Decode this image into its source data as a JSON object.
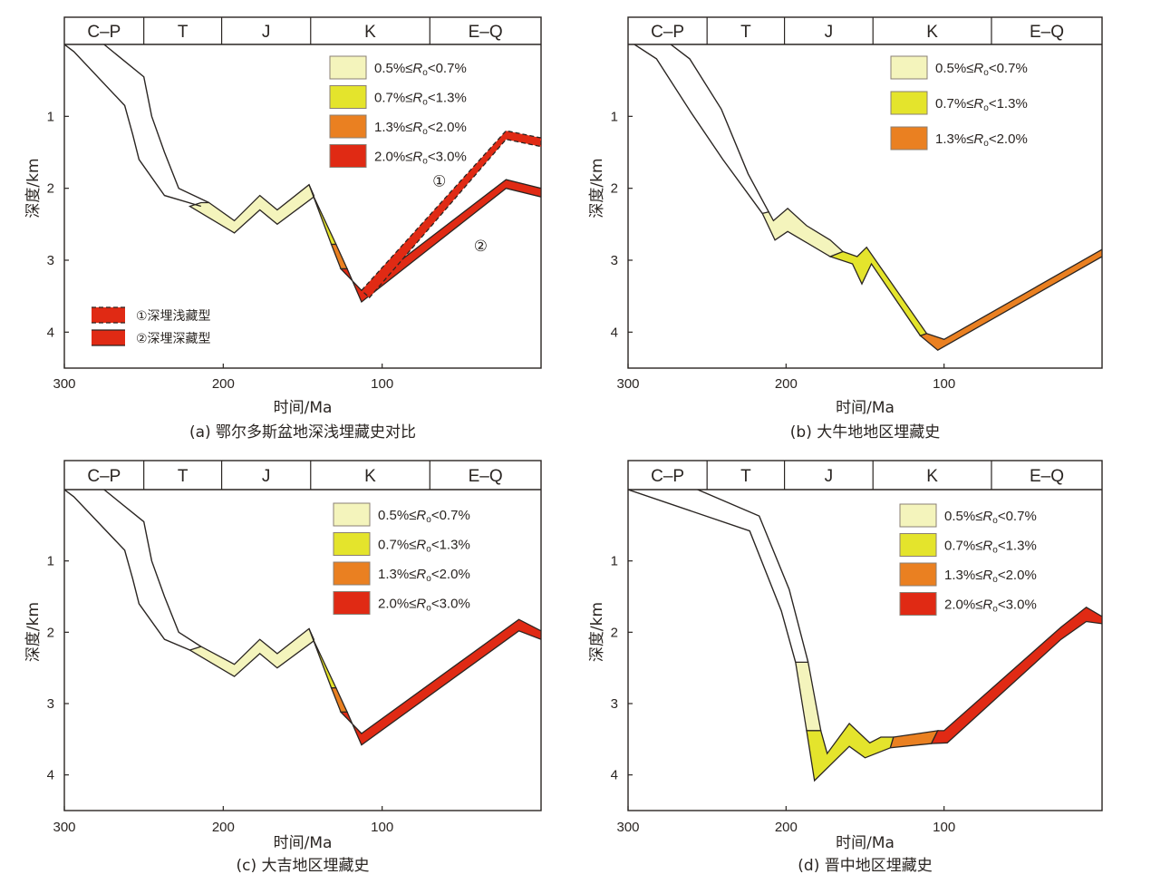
{
  "figure": {
    "colors": {
      "ro_05_07": "#f4f4bc",
      "ro_07_13": "#e4e42c",
      "ro_13_20": "#ea8021",
      "ro_20_30": "#e02a14",
      "outline": "#2a2522"
    },
    "ro_legend": [
      {
        "key": "ro_05_07",
        "pre": "0.5%≤",
        "sym": "R",
        "sub": "o",
        "post": "<0.7%"
      },
      {
        "key": "ro_07_13",
        "pre": "0.7%≤",
        "sym": "R",
        "sub": "o",
        "post": "<1.3%"
      },
      {
        "key": "ro_13_20",
        "pre": "1.3%≤",
        "sym": "R",
        "sub": "o",
        "post": "<2.0%"
      },
      {
        "key": "ro_20_30",
        "pre": "2.0%≤",
        "sym": "R",
        "sub": "o",
        "post": "<3.0%"
      }
    ],
    "periods": [
      {
        "label": "C–P",
        "from": 300,
        "to": 250
      },
      {
        "label": "T",
        "from": 250,
        "to": 201
      },
      {
        "label": "J",
        "from": 201,
        "to": 145
      },
      {
        "label": "K",
        "from": 145,
        "to": 70
      },
      {
        "label": "E–Q",
        "from": 70,
        "to": 0
      }
    ]
  },
  "chart_data": [
    {
      "id": "a",
      "type": "area",
      "title": "(a) 鄂尔多斯盆地深浅埋藏史对比",
      "xlabel": "时间/Ma",
      "ylabel": "深度/km",
      "xlim": [
        300,
        0
      ],
      "ylim": [
        0,
        4.5
      ],
      "xticks": [
        "300",
        "200",
        "100"
      ],
      "xtick_values": [
        300,
        200,
        100
      ],
      "yticks": [
        "1",
        "2",
        "3",
        "4"
      ],
      "ytick_values": [
        1,
        2,
        3,
        4
      ],
      "legend_levels": 4,
      "legend_position": "top-right",
      "burial_legend": [
        {
          "label": "①深埋浅藏型",
          "style": "dashed"
        },
        {
          "label": "②深埋深藏型",
          "style": "solid"
        }
      ],
      "annotations": [
        {
          "text": "①",
          "x": 64,
          "y": 1.9
        },
        {
          "text": "②",
          "x": 38,
          "y": 2.8
        }
      ],
      "top_line": [
        [
          300,
          0
        ],
        [
          294,
          0.1
        ],
        [
          262,
          0.85
        ],
        [
          257,
          1.25
        ],
        [
          253,
          1.6
        ],
        [
          237,
          2.1
        ],
        [
          221,
          2.3
        ],
        [
          193,
          2.62
        ],
        [
          177,
          2.3
        ],
        [
          166,
          2.5
        ],
        [
          144,
          2.1
        ],
        [
          113,
          3.58
        ],
        [
          22,
          2.0
        ],
        [
          0,
          2.08
        ]
      ],
      "bottom_line_raw": null,
      "unfilled_top": [
        [
          300,
          0
        ],
        [
          294,
          0.1
        ],
        [
          262,
          0.85
        ],
        [
          257,
          1.25
        ],
        [
          253,
          1.6
        ],
        [
          237,
          2.1
        ],
        [
          214,
          2.25
        ]
      ],
      "unfilled_upper": [
        [
          275,
          0
        ],
        [
          250,
          0.45
        ],
        [
          245,
          1.0
        ],
        [
          237,
          1.5
        ],
        [
          228,
          2.0
        ],
        [
          209,
          2.2
        ]
      ],
      "segments": [
        {
          "level": "ro_05_07",
          "upper": [
            [
              214,
              2.2
            ],
            [
              209,
              2.2
            ],
            [
              193,
              2.45
            ],
            [
              177,
              2.1
            ],
            [
              166,
              2.3
            ],
            [
              146,
              1.95
            ],
            [
              143,
              2.1
            ]
          ],
          "lower": [
            [
              221,
              2.25
            ],
            [
              193,
              2.62
            ],
            [
              177,
              2.3
            ],
            [
              166,
              2.5
            ],
            [
              143,
              2.12
            ]
          ]
        },
        {
          "level": "ro_07_13",
          "upper": [
            [
              146,
              1.95
            ],
            [
              132,
              2.78
            ]
          ],
          "lower": [
            [
              143,
              2.12
            ],
            [
              129,
              2.78
            ]
          ]
        },
        {
          "level": "ro_13_20",
          "upper": [
            [
              132,
              2.78
            ],
            [
              126,
              3.12
            ]
          ],
          "lower": [
            [
              129,
              2.78
            ],
            [
              122,
              3.12
            ]
          ]
        },
        {
          "level": "ro_20_30",
          "upper": [
            [
              126,
              3.12
            ],
            [
              113,
              3.42
            ],
            [
              22,
              1.88
            ],
            [
              0,
              2.0
            ]
          ],
          "lower": [
            [
              122,
              3.12
            ],
            [
              113,
              3.58
            ],
            [
              22,
              2.0
            ],
            [
              0,
              2.12
            ]
          ]
        },
        {
          "level": "ro_20_30",
          "dashed": true,
          "upper": [
            [
              113,
              3.42
            ],
            [
              22,
              1.2
            ],
            [
              0,
              1.3
            ]
          ],
          "lower": [
            [
              108,
              3.52
            ],
            [
              22,
              1.32
            ],
            [
              0,
              1.42
            ]
          ]
        }
      ]
    },
    {
      "id": "b",
      "type": "area",
      "title": "(b) 大牛地地区埋藏史",
      "xlabel": "时间/Ma",
      "ylabel": "深度/km",
      "xlim": [
        300,
        0
      ],
      "ylim": [
        0,
        4.5
      ],
      "xticks": [
        "300",
        "200",
        "100"
      ],
      "xtick_values": [
        300,
        200,
        100
      ],
      "yticks": [
        "1",
        "2",
        "3",
        "4"
      ],
      "ytick_values": [
        1,
        2,
        3,
        4
      ],
      "legend_levels": 3,
      "legend_position": "top-right",
      "unfilled_top": [
        [
          296,
          0
        ],
        [
          282,
          0.2
        ],
        [
          260,
          0.95
        ],
        [
          240,
          1.6
        ],
        [
          215,
          2.35
        ]
      ],
      "unfilled_upper": [
        [
          273,
          0
        ],
        [
          261,
          0.2
        ],
        [
          241,
          0.9
        ],
        [
          224,
          1.8
        ],
        [
          211,
          2.33
        ]
      ],
      "segments": [
        {
          "level": "ro_05_07",
          "upper": [
            [
              215,
              2.35
            ],
            [
              211,
              2.33
            ],
            [
              208,
              2.45
            ],
            [
              199,
              2.28
            ],
            [
              187,
              2.52
            ],
            [
              172,
              2.72
            ],
            [
              164,
              2.88
            ]
          ],
          "lower": [
            [
              215,
              2.35
            ],
            [
              207,
              2.72
            ],
            [
              199,
              2.6
            ],
            [
              172,
              2.95
            ],
            [
              164,
              2.98
            ]
          ]
        },
        {
          "level": "ro_07_13",
          "upper": [
            [
              164,
              2.88
            ],
            [
              155,
              2.95
            ],
            [
              149,
              2.82
            ],
            [
              111,
              4.02
            ]
          ],
          "lower": [
            [
              172,
              2.95
            ],
            [
              158,
              3.05
            ],
            [
              152,
              3.33
            ],
            [
              146,
              3.05
            ],
            [
              115,
              4.05
            ]
          ]
        },
        {
          "level": "ro_13_20",
          "upper": [
            [
              111,
              4.02
            ],
            [
              100,
              4.1
            ],
            [
              0,
              2.85
            ]
          ],
          "lower": [
            [
              115,
              4.05
            ],
            [
              104,
              4.25
            ],
            [
              0,
              2.95
            ]
          ]
        }
      ]
    },
    {
      "id": "c",
      "type": "area",
      "title": "(c) 大吉地区埋藏史",
      "xlabel": "时间/Ma",
      "ylabel": "深度/km",
      "xlim": [
        300,
        0
      ],
      "ylim": [
        0,
        4.5
      ],
      "xticks": [
        "300",
        "200",
        "100"
      ],
      "xtick_values": [
        300,
        200,
        100
      ],
      "yticks": [
        "1",
        "2",
        "3",
        "4"
      ],
      "ytick_values": [
        1,
        2,
        3,
        4
      ],
      "legend_levels": 4,
      "legend_position": "top-right",
      "unfilled_top": [
        [
          300,
          0
        ],
        [
          294,
          0.1
        ],
        [
          262,
          0.85
        ],
        [
          257,
          1.25
        ],
        [
          253,
          1.6
        ],
        [
          237,
          2.1
        ],
        [
          221,
          2.25
        ]
      ],
      "unfilled_upper": [
        [
          275,
          0
        ],
        [
          250,
          0.45
        ],
        [
          245,
          1.0
        ],
        [
          237,
          1.5
        ],
        [
          228,
          2.0
        ],
        [
          214,
          2.2
        ]
      ],
      "segments": [
        {
          "level": "ro_05_07",
          "upper": [
            [
              214,
              2.2
            ],
            [
              193,
              2.45
            ],
            [
              177,
              2.1
            ],
            [
              166,
              2.3
            ],
            [
              146,
              1.95
            ],
            [
              143,
              2.1
            ]
          ],
          "lower": [
            [
              221,
              2.25
            ],
            [
              193,
              2.62
            ],
            [
              177,
              2.3
            ],
            [
              166,
              2.5
            ],
            [
              143,
              2.12
            ]
          ]
        },
        {
          "level": "ro_07_13",
          "upper": [
            [
              146,
              1.95
            ],
            [
              132,
              2.78
            ]
          ],
          "lower": [
            [
              143,
              2.12
            ],
            [
              129,
              2.78
            ]
          ]
        },
        {
          "level": "ro_13_20",
          "upper": [
            [
              132,
              2.78
            ],
            [
              126,
              3.12
            ]
          ],
          "lower": [
            [
              129,
              2.78
            ],
            [
              122,
              3.12
            ]
          ]
        },
        {
          "level": "ro_20_30",
          "upper": [
            [
              126,
              3.12
            ],
            [
              113,
              3.42
            ],
            [
              14,
              1.82
            ],
            [
              0,
              1.98
            ]
          ],
          "lower": [
            [
              122,
              3.12
            ],
            [
              113,
              3.58
            ],
            [
              14,
              1.98
            ],
            [
              0,
              2.1
            ]
          ]
        }
      ]
    },
    {
      "id": "d",
      "type": "area",
      "title": "(d) 晋中地区埋藏史",
      "xlabel": "时间/Ma",
      "ylabel": "深度/km",
      "xlim": [
        300,
        0
      ],
      "ylim": [
        0,
        4.5
      ],
      "xticks": [
        "300",
        "200",
        "100"
      ],
      "xtick_values": [
        300,
        200,
        100
      ],
      "yticks": [
        "1",
        "2",
        "3",
        "4"
      ],
      "ytick_values": [
        1,
        2,
        3,
        4
      ],
      "legend_levels": 4,
      "legend_position": "top-right",
      "unfilled_top": [
        [
          300,
          0
        ],
        [
          223,
          0.58
        ],
        [
          203,
          1.7
        ],
        [
          194,
          2.42
        ]
      ],
      "unfilled_upper": [
        [
          256,
          0
        ],
        [
          217,
          0.37
        ],
        [
          198,
          1.4
        ],
        [
          186,
          2.42
        ]
      ],
      "segments": [
        {
          "level": "ro_05_07",
          "upper": [
            [
              186,
              2.42
            ],
            [
              178,
              3.38
            ]
          ],
          "lower": [
            [
              194,
              2.42
            ],
            [
              187,
              3.38
            ]
          ]
        },
        {
          "level": "ro_07_13",
          "upper": [
            [
              178,
              3.38
            ],
            [
              174,
              3.7
            ],
            [
              160,
              3.28
            ],
            [
              147,
              3.55
            ],
            [
              140,
              3.47
            ],
            [
              132,
              3.47
            ]
          ],
          "lower": [
            [
              187,
              3.38
            ],
            [
              182,
              4.08
            ],
            [
              160,
              3.6
            ],
            [
              150,
              3.76
            ],
            [
              134,
              3.62
            ]
          ]
        },
        {
          "level": "ro_13_20",
          "upper": [
            [
              132,
              3.47
            ],
            [
              104,
              3.38
            ]
          ],
          "lower": [
            [
              134,
              3.62
            ],
            [
              108,
              3.56
            ]
          ]
        },
        {
          "level": "ro_20_30",
          "upper": [
            [
              104,
              3.38
            ],
            [
              100,
              3.38
            ],
            [
              26,
              1.93
            ],
            [
              10,
              1.65
            ],
            [
              0,
              1.78
            ]
          ],
          "lower": [
            [
              108,
              3.56
            ],
            [
              98,
              3.55
            ],
            [
              26,
              2.1
            ],
            [
              10,
              1.85
            ],
            [
              0,
              1.88
            ]
          ]
        }
      ]
    }
  ]
}
